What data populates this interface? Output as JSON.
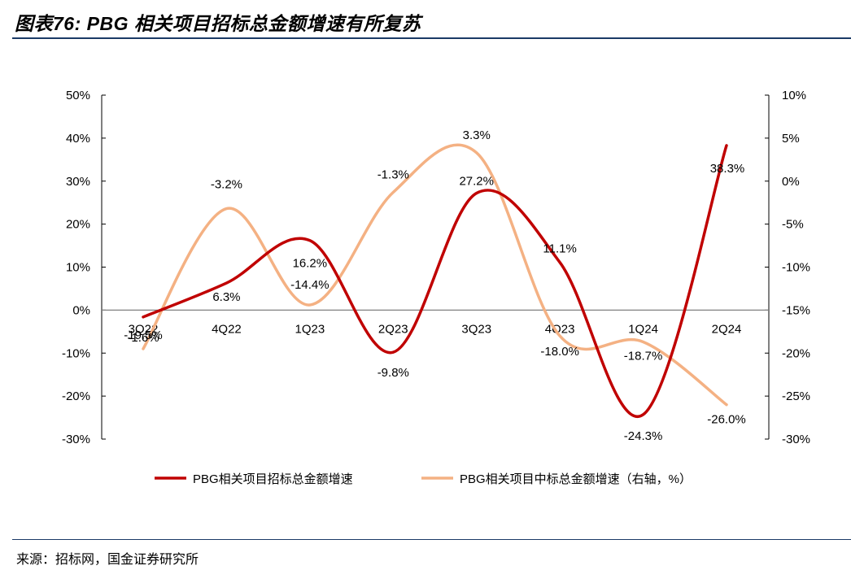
{
  "header": {
    "title": "图表76:  PBG 相关项目招标总金额增速有所复苏"
  },
  "footer": {
    "source": "来源：招标网，国金证券研究所"
  },
  "chart_data": {
    "type": "line",
    "categories": [
      "3Q22",
      "4Q22",
      "1Q23",
      "2Q23",
      "3Q23",
      "4Q23",
      "1Q24",
      "2Q24"
    ],
    "series": [
      {
        "name": "PBG相关项目招标总金额增速",
        "axis": "left",
        "color": "#c00000",
        "values": [
          -1.6,
          6.3,
          16.2,
          -9.8,
          27.2,
          11.1,
          -24.3,
          38.3
        ],
        "labels": [
          "-1.6%",
          "6.3%",
          "16.2%",
          "-9.8%",
          "27.2%",
          "11.1%",
          "-24.3%",
          "38.3%"
        ]
      },
      {
        "name": "PBG相关项目中标总金额增速（右轴，%）",
        "axis": "right",
        "color": "#f4b183",
        "values": [
          -19.5,
          -3.2,
          -14.4,
          -1.3,
          3.3,
          -18.0,
          -18.7,
          -26.0
        ],
        "labels": [
          "-19.5%",
          "-3.2%",
          "-14.4%",
          "-1.3%",
          "3.3%",
          "-18.0%",
          "-18.7%",
          "-26.0%"
        ]
      }
    ],
    "y_left": {
      "min": -30,
      "max": 50,
      "step": 10,
      "ticks": [
        "-30%",
        "-20%",
        "-10%",
        "0%",
        "10%",
        "20%",
        "30%",
        "40%",
        "50%"
      ]
    },
    "y_right": {
      "min": -30,
      "max": 10,
      "step": 5,
      "ticks": [
        "-30%",
        "-25%",
        "-20%",
        "-15%",
        "-10%",
        "-5%",
        "0%",
        "5%",
        "10%"
      ]
    },
    "legend_position": "bottom",
    "grid": false,
    "smooth": true
  }
}
